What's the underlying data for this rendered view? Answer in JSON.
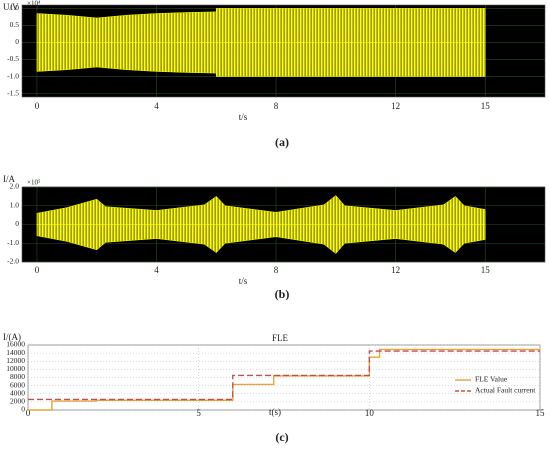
{
  "chart_data": [
    {
      "type": "area",
      "panel_label": "(a)",
      "x_label": "t/s",
      "y_label": "U/V",
      "y_multiplier": "×10⁴",
      "x": [
        0,
        1,
        2,
        3,
        4,
        5,
        6,
        6,
        8,
        10,
        12,
        14,
        15
      ],
      "values": [
        0.85,
        0.8,
        0.72,
        0.8,
        0.85,
        0.88,
        0.9,
        1.0,
        1.0,
        1.0,
        1.0,
        1.0,
        1.0
      ],
      "color": "#ffff00",
      "background": "#000000",
      "grid": true,
      "xlim": [
        -0.5,
        17
      ],
      "ylim": [
        -1.6,
        1.1
      ],
      "xticks": [
        0,
        4,
        8,
        12,
        15
      ],
      "yticks": [
        {
          "value": 1,
          "label": "1.0"
        },
        0.5,
        0,
        -0.5,
        {
          "value": -1,
          "label": "-1.0"
        },
        -1.5
      ]
    },
    {
      "type": "area",
      "panel_label": "(b)",
      "x_label": "t/s",
      "y_label": "I/A",
      "y_multiplier": "×10⁵",
      "x": [
        0,
        1,
        2,
        2.3,
        4,
        5.6,
        6,
        6.3,
        8,
        9.6,
        10,
        10.3,
        12,
        13.6,
        14,
        14.3,
        15
      ],
      "values": [
        0.6,
        0.9,
        1.35,
        0.95,
        0.75,
        1.05,
        1.5,
        1.0,
        0.65,
        1.05,
        1.55,
        1.0,
        0.75,
        1.05,
        1.5,
        1.0,
        0.8
      ],
      "color": "#ffff00",
      "background": "#000000",
      "grid": true,
      "xlim": [
        -0.5,
        17
      ],
      "ylim": [
        -2,
        2
      ],
      "xticks": [
        0,
        4,
        8,
        12,
        15
      ],
      "yticks": [
        {
          "value": 2,
          "label": "2.0"
        },
        {
          "value": 1,
          "label": "1.0"
        },
        0,
        {
          "value": -1,
          "label": "-1.0"
        },
        {
          "value": -2,
          "label": "-2.0"
        }
      ]
    },
    {
      "type": "line",
      "panel_label": "(c)",
      "title": "FLE",
      "x_label": "t(s)",
      "y_label": "I/(A)",
      "background": "#ffffff",
      "grid": true,
      "legend": "lower-right",
      "xlim": [
        0,
        15
      ],
      "ylim": [
        0,
        16000
      ],
      "xticks": [
        0,
        5,
        10,
        15
      ],
      "yticks": [
        0,
        2000,
        4000,
        6000,
        8000,
        10000,
        12000,
        14000,
        16000
      ],
      "series": [
        {
          "name": "FLE Value",
          "color": "#e8a33c",
          "dash": false,
          "x": [
            0,
            0.7,
            0.7,
            2,
            2,
            6,
            6,
            7.2,
            7.2,
            10,
            10,
            10.3,
            10.3,
            15
          ],
          "values": [
            0,
            0,
            2200,
            2200,
            2400,
            2400,
            6300,
            6300,
            8400,
            8400,
            13000,
            13000,
            14900,
            14900
          ]
        },
        {
          "name": "Actual Fault current",
          "color": "#c0504d",
          "dash": true,
          "x": [
            0,
            6,
            6,
            10,
            10,
            15
          ],
          "values": [
            2600,
            2600,
            8500,
            8500,
            14500,
            14500
          ]
        }
      ]
    }
  ]
}
